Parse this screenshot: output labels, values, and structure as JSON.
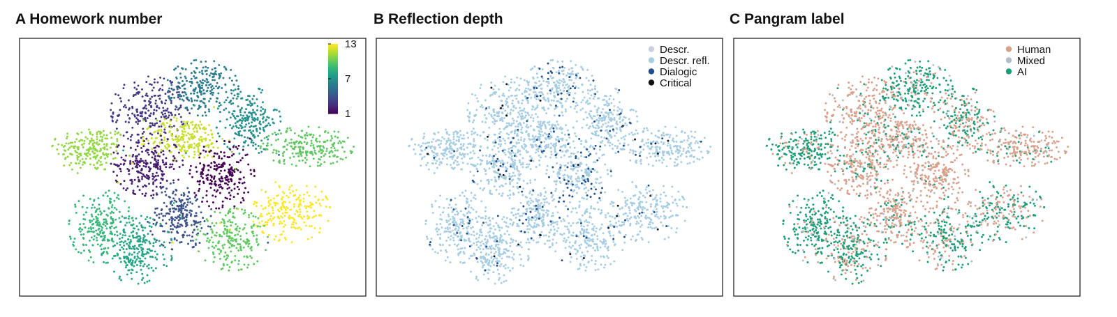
{
  "chart_data": [
    {
      "type": "scatter",
      "panel_label": "A",
      "title": "Homework number",
      "color_scale": "viridis",
      "colorbar": {
        "min": 1,
        "max": 13,
        "tick_labels": [
          "13",
          "7",
          "1"
        ],
        "ticks": [
          13,
          7,
          1
        ]
      },
      "clusters": [
        {
          "homework": 11,
          "cx": 2.2,
          "cy": 6.2,
          "sx": 0.55,
          "sy": 0.45,
          "n": 210
        },
        {
          "homework": 3,
          "cx": 4.0,
          "cy": 7.7,
          "sx": 0.55,
          "sy": 0.6,
          "n": 240
        },
        {
          "homework": 6,
          "cx": 5.6,
          "cy": 8.6,
          "sx": 0.5,
          "sy": 0.5,
          "n": 230
        },
        {
          "homework": 7,
          "cx": 7.0,
          "cy": 7.3,
          "sx": 0.45,
          "sy": 0.6,
          "n": 220
        },
        {
          "homework": 12,
          "cx": 5.1,
          "cy": 6.6,
          "sx": 0.6,
          "sy": 0.4,
          "n": 230
        },
        {
          "homework": 2,
          "cx": 3.9,
          "cy": 5.6,
          "sx": 0.5,
          "sy": 0.55,
          "n": 240
        },
        {
          "homework": 1,
          "cx": 6.2,
          "cy": 5.2,
          "sx": 0.45,
          "sy": 0.6,
          "n": 230
        },
        {
          "homework": 10,
          "cx": 8.8,
          "cy": 6.3,
          "sx": 0.65,
          "sy": 0.35,
          "n": 220
        },
        {
          "homework": 13,
          "cx": 8.3,
          "cy": 3.8,
          "sx": 0.55,
          "sy": 0.55,
          "n": 220
        },
        {
          "homework": 4,
          "cx": 4.9,
          "cy": 3.6,
          "sx": 0.45,
          "sy": 0.6,
          "n": 230
        },
        {
          "homework": 9,
          "cx": 2.5,
          "cy": 3.2,
          "sx": 0.45,
          "sy": 0.65,
          "n": 230
        },
        {
          "homework": 8,
          "cx": 3.6,
          "cy": 2.3,
          "sx": 0.5,
          "sy": 0.6,
          "n": 240
        },
        {
          "homework": 10,
          "cx": 6.5,
          "cy": 2.7,
          "sx": 0.5,
          "sy": 0.55,
          "n": 220
        }
      ],
      "xlim": [
        0,
        10.6
      ],
      "ylim": [
        0.5,
        10.5
      ]
    },
    {
      "type": "scatter",
      "panel_label": "B",
      "title": "Reflection depth",
      "legend": {
        "position": "top-right",
        "entries": [
          {
            "label": "Descr.",
            "color": "#c8cfdc"
          },
          {
            "label": "Descr. refl.",
            "color": "#a6cde2"
          },
          {
            "label": "Dialogic",
            "color": "#1f4e8c"
          },
          {
            "label": "Critical",
            "color": "#111111"
          }
        ]
      },
      "category_shares": {
        "Descr.": 0.01,
        "Descr. refl.": 0.93,
        "Dialogic": 0.05,
        "Critical": 0.01
      }
    },
    {
      "type": "scatter",
      "panel_label": "C",
      "title": "Pangram label",
      "legend": {
        "position": "top-right",
        "entries": [
          {
            "label": "Human",
            "color": "#d9a18c"
          },
          {
            "label": "Mixed",
            "color": "#b3bfc8"
          },
          {
            "label": "AI",
            "color": "#1b9e77"
          }
        ]
      },
      "category_shares": {
        "Human": 0.55,
        "Mixed": 0.05,
        "AI": 0.4
      }
    }
  ],
  "colors": {
    "frame": "#111111",
    "background": "#ffffff"
  }
}
